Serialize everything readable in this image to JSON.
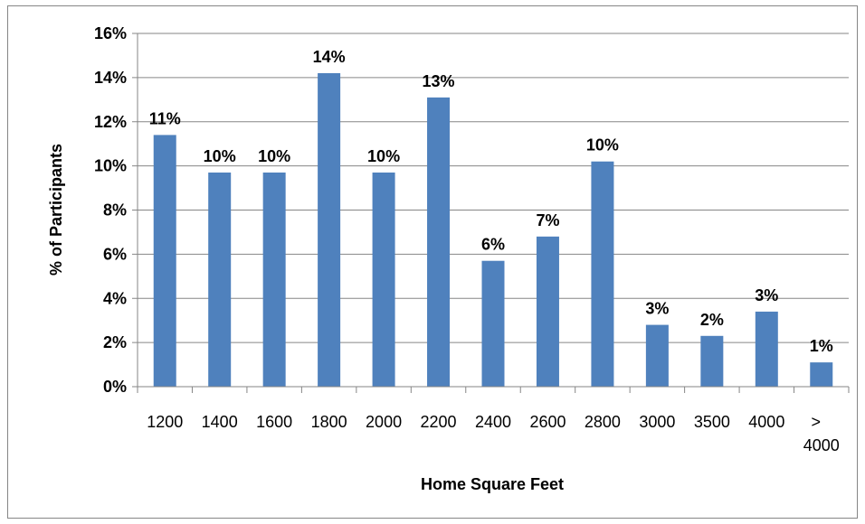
{
  "chart_data": {
    "type": "bar",
    "categories": [
      "1200",
      "1400",
      "1600",
      "1800",
      "2000",
      "2200",
      "2400",
      "2600",
      "2800",
      "3000",
      "3500",
      "4000",
      "> 4000"
    ],
    "values": [
      11.4,
      9.7,
      9.7,
      14.2,
      9.7,
      13.1,
      5.7,
      6.8,
      10.2,
      2.8,
      2.3,
      3.4,
      1.1
    ],
    "data_labels": [
      "11%",
      "10%",
      "10%",
      "14%",
      "10%",
      "13%",
      "6%",
      "7%",
      "10%",
      "3%",
      "2%",
      "3%",
      "1%"
    ],
    "yticks": [
      "0%",
      "2%",
      "4%",
      "6%",
      "8%",
      "10%",
      "12%",
      "14%",
      "16%"
    ],
    "ylim": [
      0,
      16
    ],
    "ylabel": "% of Participants",
    "xlabel": "Home Square Feet",
    "grid": true,
    "bar_color": "#4f81bd"
  }
}
